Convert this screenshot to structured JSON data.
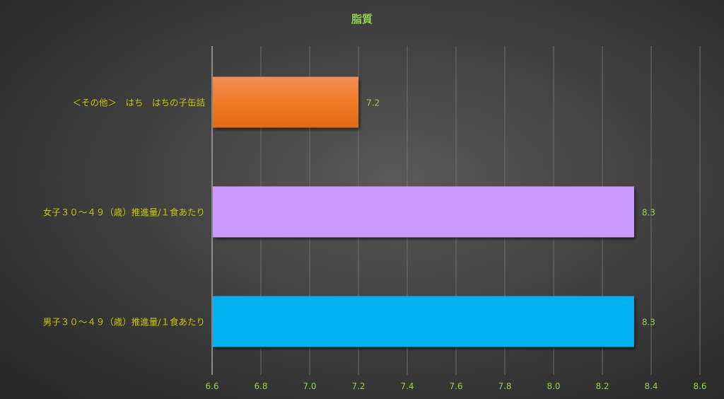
{
  "chart_data": {
    "type": "bar",
    "orientation": "horizontal",
    "title": "脂質",
    "categories": [
      "＜その他＞　はち　はちの子缶詰",
      "女子３０～４９（歳）推進量/１食あたり",
      "男子３０～４９（歳）推進量/１食あたり"
    ],
    "values": [
      7.2,
      8.33,
      8.33
    ],
    "data_labels": [
      "7.2",
      "8.3",
      "8.3"
    ],
    "colors": [
      "#ED7D31",
      "#CC99FF",
      "#00B0F0"
    ],
    "xlim": [
      6.6,
      8.6
    ],
    "x_ticks": [
      "6.6",
      "6.8",
      "7.0",
      "7.2",
      "7.4",
      "7.6",
      "7.8",
      "8.0",
      "8.2",
      "8.4",
      "8.6"
    ],
    "grid": true,
    "legend": "none",
    "title_color": "#92D050",
    "category_label_color": "#C8C800",
    "tick_label_color": "#92D050"
  }
}
